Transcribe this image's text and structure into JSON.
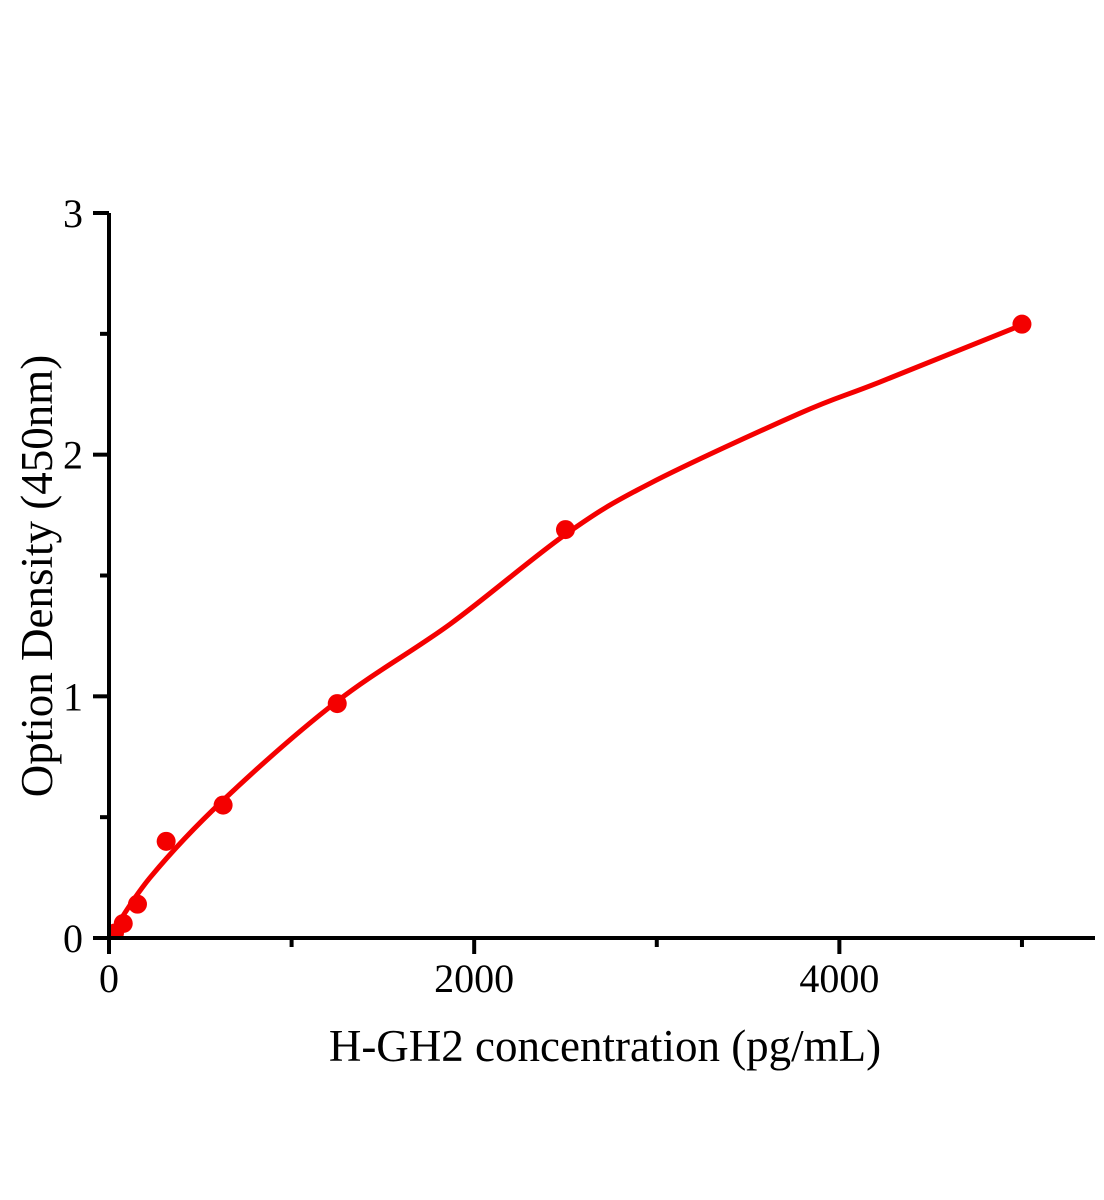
{
  "figure": {
    "background": "#ffffff",
    "axis_color": "#000000",
    "accent_color": "#f40000"
  },
  "chart_data": {
    "type": "scatter",
    "title": "",
    "xlabel": "H-GH2 concentration (pg/mL)",
    "ylabel": "Option Density (450nm)",
    "xlim": [
      0,
      5400
    ],
    "ylim": [
      0,
      3
    ],
    "grid": false,
    "legend": null,
    "x_major_ticks": [
      {
        "value": 0,
        "label": "0"
      },
      {
        "value": 2000,
        "label": "2000"
      },
      {
        "value": 4000,
        "label": "4000"
      }
    ],
    "x_minor_ticks": [
      1000,
      3000,
      5000
    ],
    "y_major_ticks": [
      {
        "value": 0,
        "label": "0"
      },
      {
        "value": 1,
        "label": "1"
      },
      {
        "value": 2,
        "label": "2"
      },
      {
        "value": 3,
        "label": "3"
      }
    ],
    "y_minor_ticks": [
      0.5,
      1.5,
      2.5
    ],
    "series": [
      {
        "name": "standard-points",
        "type": "scatter",
        "color": "#f40000",
        "points": [
          {
            "x": 30,
            "y": 0.02
          },
          {
            "x": 78,
            "y": 0.06
          },
          {
            "x": 156,
            "y": 0.14
          },
          {
            "x": 313,
            "y": 0.4
          },
          {
            "x": 625,
            "y": 0.55
          },
          {
            "x": 1250,
            "y": 0.97
          },
          {
            "x": 2500,
            "y": 1.69
          },
          {
            "x": 5000,
            "y": 2.54
          }
        ]
      },
      {
        "name": "fitted-curve",
        "type": "line",
        "color": "#f40000",
        "points": [
          {
            "x": 0,
            "y": 0.0
          },
          {
            "x": 225,
            "y": 0.25
          },
          {
            "x": 625,
            "y": 0.57
          },
          {
            "x": 1250,
            "y": 0.98
          },
          {
            "x": 1870,
            "y": 1.3
          },
          {
            "x": 2500,
            "y": 1.67
          },
          {
            "x": 2960,
            "y": 1.88
          },
          {
            "x": 3780,
            "y": 2.17
          },
          {
            "x": 4220,
            "y": 2.3
          },
          {
            "x": 5010,
            "y": 2.54
          }
        ]
      }
    ]
  }
}
